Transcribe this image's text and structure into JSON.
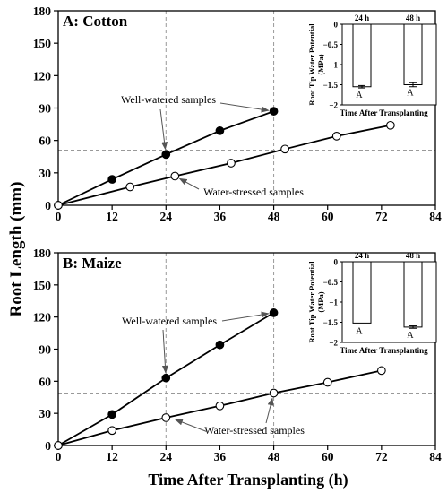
{
  "figure": {
    "ylabel": "Root Length (mm)",
    "xlabel": "Time After Transplanting (h)"
  },
  "chart_data": [
    {
      "type": "line",
      "panel_label": "A: Cotton",
      "x_ticks": [
        "0",
        "12",
        "24",
        "36",
        "48",
        "60",
        "72",
        "84"
      ],
      "y_ticks": [
        "0",
        "30",
        "60",
        "90",
        "120",
        "150",
        "180"
      ],
      "xlim": [
        0,
        84
      ],
      "ylim": [
        0,
        180
      ],
      "ref_lines": {
        "x": [
          24,
          48
        ],
        "y": 51
      },
      "series": [
        {
          "key": "ww",
          "filled": true,
          "x": [
            0,
            12,
            24,
            36,
            48
          ],
          "y": [
            0,
            24,
            47,
            69,
            87
          ]
        },
        {
          "key": "ws",
          "filled": false,
          "x": [
            0,
            16,
            26,
            38.5,
            50.5,
            62,
            74
          ],
          "y": [
            0,
            17,
            27,
            39,
            52,
            64,
            74
          ]
        }
      ],
      "annotations": [
        {
          "text": "Well-watered samples",
          "points": [
            [
              24,
              47
            ],
            [
              48,
              87
            ]
          ]
        },
        {
          "text": "Water-stressed samples",
          "points": [
            [
              26,
              27
            ]
          ]
        }
      ],
      "inset": {
        "type": "bar",
        "ylabel_lines": [
          "Root Tip Water Potential",
          "(MPa)"
        ],
        "xlabel": "Time After Transplanting",
        "categories": [
          "24 h",
          "48 h"
        ],
        "values": [
          -1.55,
          -1.5
        ],
        "errors": [
          0.03,
          0.05
        ],
        "letters": [
          "A",
          "A"
        ],
        "y_ticks": [
          "0",
          "−0.5",
          "−1",
          "−1.5",
          "−2"
        ],
        "ylim": [
          -2,
          0
        ]
      }
    },
    {
      "type": "line",
      "panel_label": "B: Maize",
      "x_ticks": [
        "0",
        "12",
        "24",
        "36",
        "48",
        "60",
        "72",
        "84"
      ],
      "y_ticks": [
        "0",
        "30",
        "60",
        "90",
        "120",
        "150",
        "180"
      ],
      "xlim": [
        0,
        84
      ],
      "ylim": [
        0,
        180
      ],
      "ref_lines": {
        "x": [
          24,
          48
        ],
        "y": 49
      },
      "series": [
        {
          "key": "ww",
          "filled": true,
          "x": [
            0,
            12,
            24,
            36,
            48
          ],
          "y": [
            0,
            29,
            63,
            94,
            124
          ]
        },
        {
          "key": "ws",
          "filled": false,
          "x": [
            0,
            12,
            24,
            36,
            48,
            60,
            72
          ],
          "y": [
            0,
            14,
            26,
            37,
            49,
            59,
            70
          ]
        }
      ],
      "annotations": [
        {
          "text": "Well-watered samples",
          "points": [
            [
              24,
              63
            ],
            [
              48,
              124
            ]
          ]
        },
        {
          "text": "Water-stressed samples",
          "points": [
            [
              48,
              49
            ],
            [
              25,
              26
            ]
          ]
        }
      ],
      "inset": {
        "type": "bar",
        "ylabel_lines": [
          "Root Tip Water Potential",
          "(MPa)"
        ],
        "xlabel": "Time After Transplanting",
        "categories": [
          "24 h",
          "48 h"
        ],
        "values": [
          -1.52,
          -1.62
        ],
        "errors": [
          0.0,
          0.03
        ],
        "letters": [
          "A",
          "A"
        ],
        "y_ticks": [
          "0",
          "−0.5",
          "−1",
          "−1.5",
          "−2"
        ],
        "ylim": [
          -2,
          0
        ]
      }
    }
  ]
}
